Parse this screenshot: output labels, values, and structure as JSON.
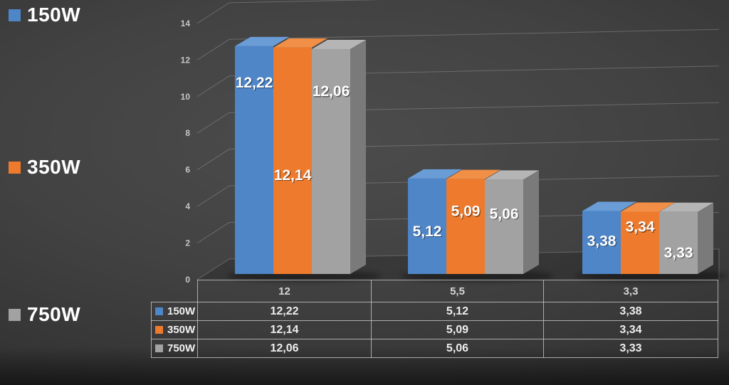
{
  "chart_data": {
    "type": "bar",
    "style": "3d-clustered-column",
    "title": "",
    "xlabel": "",
    "ylabel": "",
    "categories": [
      "12",
      "5,5",
      "3,3"
    ],
    "series": [
      {
        "name": "150W",
        "color": "#4e86c8",
        "values": [
          12.22,
          5.12,
          3.38
        ],
        "labels": [
          "12,22",
          "5,12",
          "3,38"
        ]
      },
      {
        "name": "350W",
        "color": "#ee7b2d",
        "values": [
          12.14,
          5.09,
          3.34
        ],
        "labels": [
          "12,14",
          "5,09",
          "3,34"
        ]
      },
      {
        "name": "750W",
        "color": "#a2a2a2",
        "values": [
          12.06,
          5.06,
          3.33
        ],
        "labels": [
          "12,06",
          "5,06",
          "3,33"
        ]
      }
    ],
    "y_axis": {
      "min": 0,
      "max": 14,
      "step": 2,
      "tick_labels": [
        "0",
        "2",
        "4",
        "6",
        "8",
        "10",
        "12",
        "14"
      ]
    },
    "ylim": [
      0,
      14
    ],
    "grid": true,
    "legend_position": "left",
    "data_table_shown": true
  },
  "legend": {
    "items": [
      {
        "label": "150W",
        "color": "#4e86c8"
      },
      {
        "label": "350W",
        "color": "#ee7b2d"
      },
      {
        "label": "750W",
        "color": "#a2a2a2"
      }
    ]
  },
  "table": {
    "header": [
      "12",
      "5,5",
      "3,3"
    ],
    "rows": [
      {
        "label": "150W",
        "color": "#4e86c8",
        "cells": [
          "12,22",
          "5,12",
          "3,38"
        ]
      },
      {
        "label": "350W",
        "color": "#ee7b2d",
        "cells": [
          "12,14",
          "5,09",
          "3,34"
        ]
      },
      {
        "label": "750W",
        "color": "#a2a2a2",
        "cells": [
          "12,06",
          "5,06",
          "3,33"
        ]
      }
    ]
  }
}
